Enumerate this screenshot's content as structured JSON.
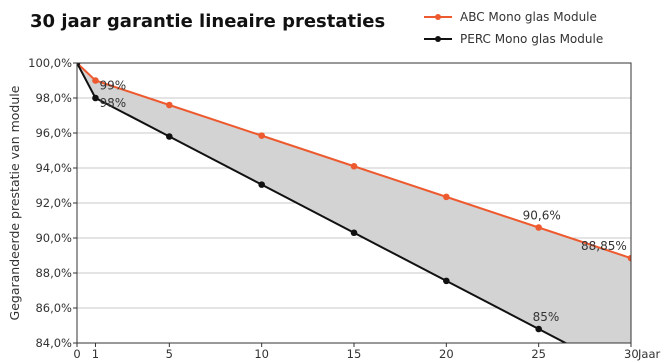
{
  "chart_data": {
    "type": "line",
    "title": "30 jaar garantie lineaire prestaties",
    "ylabel": "Gegarandeerde prestatie van module",
    "x_unit": "Jaar",
    "xlim": [
      0,
      30
    ],
    "ylim": [
      84,
      100
    ],
    "x_ticks": [
      0,
      1,
      5,
      10,
      15,
      20,
      25,
      30
    ],
    "y_ticks": [
      "84,0%",
      "86,0%",
      "88,0%",
      "90,0%",
      "92,0%",
      "94,0%",
      "96,0%",
      "98,0%",
      "100,0%"
    ],
    "y_tick_values": [
      84,
      86,
      88,
      90,
      92,
      94,
      96,
      98,
      100
    ],
    "grid": "horizontal",
    "legend_position": "top-right",
    "shaded_between_series": true,
    "shade_color": "#d3d3d3",
    "series": [
      {
        "name": "ABC Mono glas Module",
        "color": "#ee5a2f",
        "x": [
          0,
          1,
          5,
          10,
          15,
          20,
          25,
          30
        ],
        "y": [
          100,
          99,
          97.6,
          95.85,
          94.1,
          92.35,
          90.6,
          88.85
        ]
      },
      {
        "name": "PERC Mono glas Module",
        "color": "#111111",
        "x": [
          0,
          1,
          5,
          10,
          15,
          20,
          25,
          30
        ],
        "y": [
          100,
          98,
          95.8,
          93.05,
          90.3,
          87.55,
          84.8,
          82.05
        ]
      }
    ],
    "data_labels": [
      {
        "text": "99%",
        "series": 0,
        "x": 1
      },
      {
        "text": "98%",
        "series": 1,
        "x": 1
      },
      {
        "text": "90,6%",
        "series": 0,
        "x": 25
      },
      {
        "text": "88,85%",
        "series": 0,
        "x": 30
      },
      {
        "text": "85%",
        "series": 1,
        "x": 25
      }
    ]
  }
}
